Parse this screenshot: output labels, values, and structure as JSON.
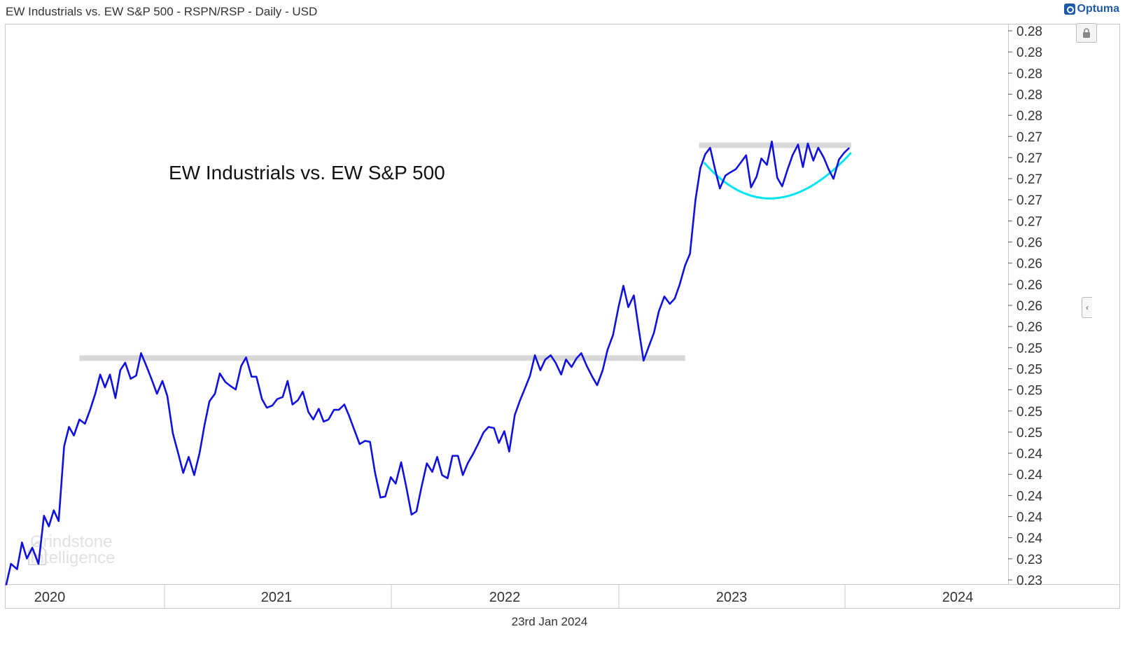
{
  "header": {
    "title": "EW Industrials vs. EW S&P 500 - RSPN/RSP - Daily - USD",
    "brand": "Optuma"
  },
  "footer": {
    "date": "23rd Jan 2024"
  },
  "watermark": {
    "line1": "Grindstone",
    "line2": "Intelligence"
  },
  "controls": {
    "lock_icon": "lock-icon",
    "collapse_icon": "chevron-left-icon",
    "collapse_glyph": "‹"
  },
  "colors": {
    "series": "#1010e0",
    "resistance_zone": "#d8d8d8",
    "base_arc": "#00e5f0",
    "axis": "#c8c8c8",
    "text": "#333333"
  },
  "chart_data": {
    "type": "line",
    "title": "",
    "annotation": "EW Industrials vs. EW S&P 500",
    "y_axis_position": "right",
    "x_tick_labels": [
      "2020",
      "2021",
      "2022",
      "2023",
      "2024"
    ],
    "y_tick_labels": [
      "0.28",
      "0.28",
      "0.28",
      "0.28",
      "0.28",
      "0.27",
      "0.27",
      "0.27",
      "0.27",
      "0.27",
      "0.26",
      "0.26",
      "0.26",
      "0.26",
      "0.26",
      "0.25",
      "0.25",
      "0.25",
      "0.25",
      "0.25",
      "0.24",
      "0.24",
      "0.24",
      "0.24",
      "0.24",
      "0.23",
      "0.23"
    ],
    "series": [
      {
        "values_note": "",
        "points": [
          [
            "2020-01-02",
            0.2297
          ],
          [
            "2020-01-10",
            0.2317
          ],
          [
            "2020-01-20",
            0.2312
          ],
          [
            "2020-01-28",
            0.2337
          ],
          [
            "2020-02-05",
            0.2322
          ],
          [
            "2020-02-14",
            0.2332
          ],
          [
            "2020-02-24",
            0.2317
          ],
          [
            "2020-03-04",
            0.2362
          ],
          [
            "2020-03-12",
            0.2352
          ],
          [
            "2020-03-20",
            0.2367
          ],
          [
            "2020-03-28",
            0.2357
          ],
          [
            "2020-04-06",
            0.2427
          ],
          [
            "2020-04-14",
            0.2445
          ],
          [
            "2020-04-22",
            0.2437
          ],
          [
            "2020-05-01",
            0.2452
          ],
          [
            "2020-05-10",
            0.2448
          ],
          [
            "2020-05-18",
            0.246
          ],
          [
            "2020-05-27",
            0.2476
          ],
          [
            "2020-06-04",
            0.2494
          ],
          [
            "2020-06-12",
            0.2482
          ],
          [
            "2020-06-20",
            0.2494
          ],
          [
            "2020-06-29",
            0.2472
          ],
          [
            "2020-07-07",
            0.2498
          ],
          [
            "2020-07-15",
            0.2505
          ],
          [
            "2020-07-24",
            0.249
          ],
          [
            "2020-08-02",
            0.2493
          ],
          [
            "2020-08-10",
            0.2514
          ],
          [
            "2020-08-18",
            0.2503
          ],
          [
            "2020-08-27",
            0.249
          ],
          [
            "2020-09-05",
            0.2476
          ],
          [
            "2020-09-14",
            0.2488
          ],
          [
            "2020-09-22",
            0.2474
          ],
          [
            "2020-10-01",
            0.2439
          ],
          [
            "2020-10-10",
            0.242
          ],
          [
            "2020-10-18",
            0.2402
          ],
          [
            "2020-10-27",
            0.2417
          ],
          [
            "2020-11-05",
            0.24
          ],
          [
            "2020-11-14",
            0.2421
          ],
          [
            "2020-11-22",
            0.2447
          ],
          [
            "2020-11-30",
            0.2469
          ],
          [
            "2020-12-09",
            0.2476
          ],
          [
            "2020-12-17",
            0.2495
          ],
          [
            "2020-12-26",
            0.2487
          ],
          [
            "2021-01-04",
            0.2483
          ],
          [
            "2021-01-12",
            0.248
          ],
          [
            "2021-01-21",
            0.2502
          ],
          [
            "2021-01-29",
            0.251
          ],
          [
            "2021-02-07",
            0.2492
          ],
          [
            "2021-02-15",
            0.2492
          ],
          [
            "2021-02-24",
            0.2471
          ],
          [
            "2021-03-04",
            0.2463
          ],
          [
            "2021-03-13",
            0.2465
          ],
          [
            "2021-03-21",
            0.2471
          ],
          [
            "2021-03-30",
            0.2473
          ],
          [
            "2021-04-07",
            0.2488
          ],
          [
            "2021-04-15",
            0.2466
          ],
          [
            "2021-04-24",
            0.247
          ],
          [
            "2021-05-02",
            0.2478
          ],
          [
            "2021-05-11",
            0.2459
          ],
          [
            "2021-05-19",
            0.2452
          ],
          [
            "2021-05-28",
            0.2462
          ],
          [
            "2021-06-05",
            0.245
          ],
          [
            "2021-06-13",
            0.2452
          ],
          [
            "2021-06-22",
            0.2461
          ],
          [
            "2021-06-30",
            0.2461
          ],
          [
            "2021-07-09",
            0.2466
          ],
          [
            "2021-07-17",
            0.2455
          ],
          [
            "2021-07-26",
            0.2441
          ],
          [
            "2021-08-03",
            0.2429
          ],
          [
            "2021-08-12",
            0.2432
          ],
          [
            "2021-08-20",
            0.2431
          ],
          [
            "2021-08-28",
            0.2403
          ],
          [
            "2021-09-06",
            0.2379
          ],
          [
            "2021-09-14",
            0.238
          ],
          [
            "2021-09-23",
            0.2398
          ],
          [
            "2021-10-01",
            0.2392
          ],
          [
            "2021-10-10",
            0.2412
          ],
          [
            "2021-10-18",
            0.239
          ],
          [
            "2021-10-27",
            0.2363
          ],
          [
            "2021-11-04",
            0.2366
          ],
          [
            "2021-11-12",
            0.2388
          ],
          [
            "2021-11-21",
            0.2411
          ],
          [
            "2021-11-30",
            0.2403
          ],
          [
            "2021-12-08",
            0.2417
          ],
          [
            "2021-12-16",
            0.24
          ],
          [
            "2021-12-25",
            0.2397
          ],
          [
            "2022-01-02",
            0.2418
          ],
          [
            "2022-01-11",
            0.2418
          ],
          [
            "2022-01-19",
            0.24
          ],
          [
            "2022-01-27",
            0.2411
          ],
          [
            "2022-02-05",
            0.242
          ],
          [
            "2022-02-13",
            0.2429
          ],
          [
            "2022-02-22",
            0.244
          ],
          [
            "2022-03-02",
            0.2445
          ],
          [
            "2022-03-11",
            0.2444
          ],
          [
            "2022-03-19",
            0.243
          ],
          [
            "2022-03-28",
            0.2441
          ],
          [
            "2022-04-05",
            0.2422
          ],
          [
            "2022-04-14",
            0.2456
          ],
          [
            "2022-04-22",
            0.2469
          ],
          [
            "2022-04-30",
            0.248
          ],
          [
            "2022-05-09",
            0.2493
          ],
          [
            "2022-05-17",
            0.2512
          ],
          [
            "2022-05-26",
            0.2498
          ],
          [
            "2022-06-03",
            0.2508
          ],
          [
            "2022-06-12",
            0.2512
          ],
          [
            "2022-06-20",
            0.2505
          ],
          [
            "2022-06-29",
            0.2494
          ],
          [
            "2022-07-07",
            0.2508
          ],
          [
            "2022-07-16",
            0.2501
          ],
          [
            "2022-07-24",
            0.2509
          ],
          [
            "2022-08-01",
            0.2514
          ],
          [
            "2022-08-10",
            0.2502
          ],
          [
            "2022-08-19",
            0.2492
          ],
          [
            "2022-08-27",
            0.2484
          ],
          [
            "2022-09-05",
            0.2498
          ],
          [
            "2022-09-13",
            0.2517
          ],
          [
            "2022-09-22",
            0.2531
          ],
          [
            "2022-10-01",
            0.2557
          ],
          [
            "2022-10-09",
            0.2577
          ],
          [
            "2022-10-17",
            0.2557
          ],
          [
            "2022-10-26",
            0.2568
          ],
          [
            "2022-11-03",
            0.2537
          ],
          [
            "2022-11-11",
            0.2507
          ],
          [
            "2022-11-20",
            0.2521
          ],
          [
            "2022-11-28",
            0.2533
          ],
          [
            "2022-12-06",
            0.2553
          ],
          [
            "2022-12-15",
            0.2567
          ],
          [
            "2022-12-24",
            0.256
          ],
          [
            "2023-01-01",
            0.2565
          ],
          [
            "2023-01-09",
            0.2578
          ],
          [
            "2023-01-18",
            0.2596
          ],
          [
            "2023-01-26",
            0.2607
          ],
          [
            "2023-02-04",
            0.2657
          ],
          [
            "2023-02-12",
            0.2687
          ],
          [
            "2023-02-20",
            0.27
          ],
          [
            "2023-02-28",
            0.2706
          ],
          [
            "2023-03-08",
            0.2686
          ],
          [
            "2023-03-16",
            0.2668
          ],
          [
            "2023-03-25",
            0.268
          ],
          [
            "2023-04-02",
            0.2683
          ],
          [
            "2023-04-11",
            0.2686
          ],
          [
            "2023-04-19",
            0.2692
          ],
          [
            "2023-04-28",
            0.2699
          ],
          [
            "2023-05-06",
            0.2669
          ],
          [
            "2023-05-15",
            0.2679
          ],
          [
            "2023-05-23",
            0.2696
          ],
          [
            "2023-06-01",
            0.269
          ],
          [
            "2023-06-09",
            0.2712
          ],
          [
            "2023-06-18",
            0.2678
          ],
          [
            "2023-06-26",
            0.267
          ],
          [
            "2023-07-05",
            0.2686
          ],
          [
            "2023-07-13",
            0.2699
          ],
          [
            "2023-07-22",
            0.2709
          ],
          [
            "2023-07-30",
            0.2688
          ],
          [
            "2023-08-07",
            0.271
          ],
          [
            "2023-08-16",
            0.2694
          ],
          [
            "2023-08-24",
            0.2706
          ],
          [
            "2023-09-02",
            0.2697
          ],
          [
            "2023-09-10",
            0.2686
          ],
          [
            "2023-09-18",
            0.2677
          ],
          [
            "2023-09-27",
            0.2695
          ],
          [
            "2023-10-05",
            0.2701
          ],
          [
            "2023-10-14",
            0.2706
          ]
        ]
      }
    ],
    "resistance_zones": [
      {
        "x_start": "2020-05-01",
        "x_end": "2023-01-18",
        "y_low": 0.2507,
        "y_high": 0.2512
      },
      {
        "x_start": "2023-02-10",
        "x_end": "2023-10-17",
        "y_low": 0.2706,
        "y_high": 0.2711
      }
    ],
    "base_arc": {
      "x_start": "2023-02-18",
      "x_mid": "2023-06-08",
      "x_end": "2023-10-17",
      "y_top": 0.2687,
      "y_bottom": 0.2653
    },
    "xlim": [
      "2019-12-31",
      "2024-06-30"
    ],
    "ylim": [
      0.2298,
      0.2818
    ],
    "grid": false,
    "legend": "none"
  }
}
